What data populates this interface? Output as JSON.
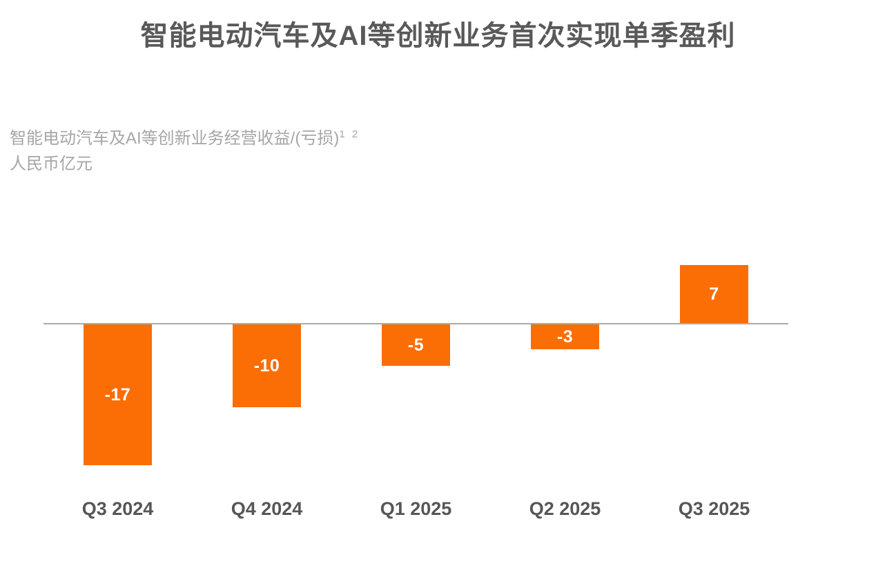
{
  "title": "智能电动汽车及AI等创新业务首次实现单季盈利",
  "subtitle": {
    "line1": "智能电动汽车及AI等创新业务经营收益/(亏损)",
    "footnotes": "1 2",
    "line2": "人民币亿元"
  },
  "colors": {
    "bar": "#FB6D05",
    "title_text": "#595959",
    "subtitle_text": "#A6A6A6",
    "axis_line": "#A9A9A9",
    "x_label_text": "#565656",
    "bar_value_text": "#FFFFFF"
  },
  "chart_data": {
    "type": "bar",
    "categories": [
      "Q3 2024",
      "Q4 2024",
      "Q1 2025",
      "Q2 2025",
      "Q3 2025"
    ],
    "values": [
      -17,
      -10,
      -5,
      -3,
      7
    ],
    "data_labels": [
      "-17",
      "-10",
      "-5",
      "-3",
      "7"
    ],
    "title": "智能电动汽车及AI等创新业务首次实现单季盈利",
    "series_label": "智能电动汽车及AI等创新业务经营收益/(亏损)",
    "unit_label": "人民币亿元",
    "xlabel": "",
    "ylabel": "人民币亿元",
    "baseline": 0,
    "ylim": [
      -17,
      7
    ],
    "grid": false,
    "legend": false,
    "bar_color": "#FB6D05"
  }
}
